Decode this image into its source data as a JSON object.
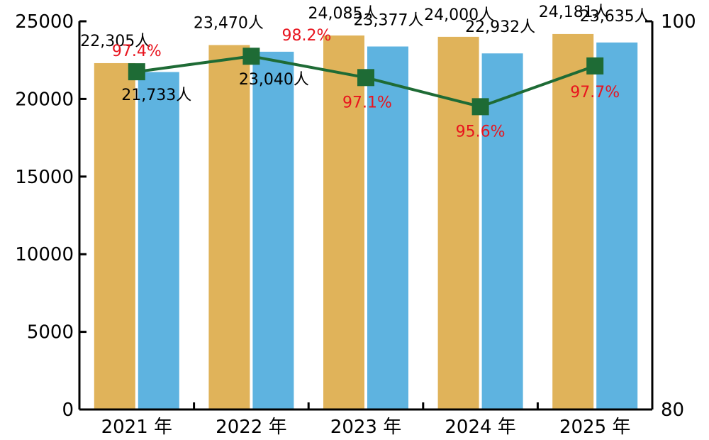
{
  "chart_data": {
    "type": "bar",
    "categories": [
      "2021 年",
      "2022 年",
      "2023 年",
      "2024 年",
      "2025 年"
    ],
    "ylim": [
      0,
      25000
    ],
    "yticks": [
      "0",
      "5000",
      "10000",
      "15000",
      "20000",
      "25000"
    ],
    "y2lim": [
      80,
      100
    ],
    "y2ticks": [
      "80",
      "100"
    ],
    "grid": false,
    "legend": "none",
    "series": [
      {
        "color": "#E0B35A",
        "values": [
          22305,
          23470,
          24085,
          24000,
          24181
        ],
        "labels": [
          "22,305人",
          "23,470人",
          "24,085人",
          "24,000人",
          "24,181人"
        ]
      },
      {
        "color": "#5EB3E0",
        "values": [
          21733,
          23040,
          23377,
          22932,
          23635
        ],
        "labels": [
          "21,733人",
          "23,040人",
          "23,377人",
          "22,932人",
          "23,635人"
        ]
      }
    ],
    "line": {
      "type": "line",
      "axis": "right",
      "color": "#1E6B35",
      "label_color": "#E8141E",
      "values": [
        97.4,
        98.2,
        97.1,
        95.6,
        97.7
      ],
      "labels": [
        "97.4%",
        "98.2%",
        "97.1%",
        "95.6%",
        "97.7%"
      ]
    }
  }
}
